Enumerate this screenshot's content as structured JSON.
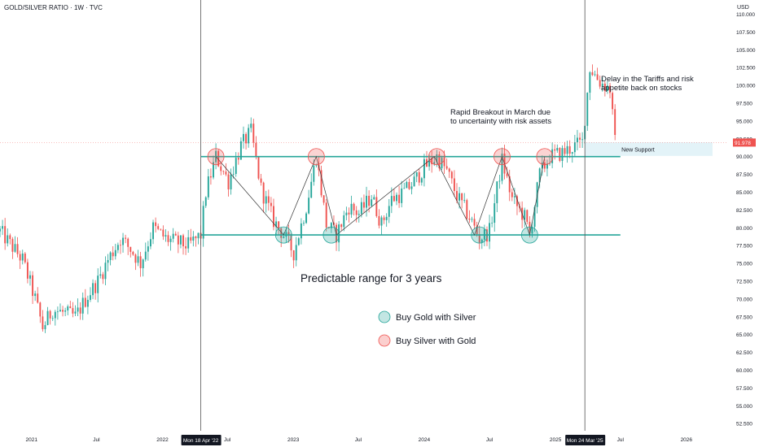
{
  "header": {
    "title": "GOLD/SILVER RATIO · 1W · TVC",
    "currency": "USD"
  },
  "chart_data": {
    "type": "candlestick",
    "instrument": "GOLD/SILVER RATIO",
    "interval": "1W",
    "source": "TVC",
    "ylim": [
      51.5,
      112.0
    ],
    "y_ticks": [
      "110.000",
      "107.500",
      "105.000",
      "102.500",
      "100.000",
      "97.500",
      "95.000",
      "92.500",
      "90.000",
      "87.500",
      "85.000",
      "82.500",
      "80.000",
      "77.500",
      "75.000",
      "72.500",
      "70.000",
      "67.500",
      "65.000",
      "62.500",
      "60.000",
      "57.500",
      "55.000",
      "52.500"
    ],
    "x_ticks": [
      {
        "label": "2021",
        "date": "2021-01-01"
      },
      {
        "label": "Jul",
        "date": "2021-07-01"
      },
      {
        "label": "2022",
        "date": "2022-01-01"
      },
      {
        "label": "Jul",
        "date": "2022-07-01"
      },
      {
        "label": "2023",
        "date": "2023-01-01"
      },
      {
        "label": "Jul",
        "date": "2023-07-01"
      },
      {
        "label": "2024",
        "date": "2024-01-01"
      },
      {
        "label": "Jul",
        "date": "2024-07-01"
      },
      {
        "label": "2025",
        "date": "2025-01-01"
      },
      {
        "label": "Jul",
        "date": "2025-07-01"
      },
      {
        "label": "2026",
        "date": "2026-01-01"
      }
    ],
    "x_start": "2020-10-05",
    "x_end": "2026-04-25",
    "last_price": "91.978",
    "last_price_value": 91.978,
    "vertical_markers": [
      {
        "label": "Mon 18 Apr '22",
        "date": "2022-04-18"
      },
      {
        "label": "Mon 24 Mar '25",
        "date": "2025-03-24"
      }
    ],
    "horizontal_levels": [
      {
        "value": 90.0,
        "from": "2022-04-18",
        "to": "2025-07-01"
      },
      {
        "value": 79.0,
        "from": "2022-04-18",
        "to": "2025-07-01"
      }
    ],
    "support_zone": {
      "low": 90.1,
      "high": 92.0,
      "from": "2025-03-24",
      "to": "2026-03-15",
      "label": "New Support"
    },
    "zigzag": [
      {
        "date": "2022-05-30",
        "value": 90.0
      },
      {
        "date": "2022-12-05",
        "value": 79.0
      },
      {
        "date": "2023-03-06",
        "value": 90.0
      },
      {
        "date": "2023-05-01",
        "value": 79.0
      },
      {
        "date": "2024-01-29",
        "value": 90.0
      },
      {
        "date": "2024-05-20",
        "value": 79.0
      },
      {
        "date": "2024-08-05",
        "value": 90.0
      },
      {
        "date": "2024-10-21",
        "value": 79.0
      },
      {
        "date": "2024-12-02",
        "value": 90.0
      }
    ],
    "buy_gold_circles": [
      {
        "date": "2022-12-05",
        "value": 79.0
      },
      {
        "date": "2023-04-17",
        "value": 79.0
      },
      {
        "date": "2024-06-03",
        "value": 79.0
      },
      {
        "date": "2024-10-21",
        "value": 79.0
      }
    ],
    "buy_silver_circles": [
      {
        "date": "2022-05-30",
        "value": 90.0
      },
      {
        "date": "2023-03-06",
        "value": 90.0
      },
      {
        "date": "2024-02-05",
        "value": 90.0
      },
      {
        "date": "2024-08-05",
        "value": 90.0
      },
      {
        "date": "2024-12-02",
        "value": 90.0
      }
    ],
    "annotations": [
      {
        "text": "Predictable range for 3 years",
        "lines": [
          "Predictable range for 3 years"
        ]
      },
      {
        "text": "Rapid Breakout in March due to uncertainty with risk assets",
        "lines": [
          "Rapid Breakout in March due",
          "to uncertainty with risk assets"
        ]
      },
      {
        "text": "Delay in the Tariffs and risk appetite back on stocks",
        "lines": [
          "Delay in the Tariffs and risk",
          "appetite back on stocks"
        ]
      }
    ],
    "legend": [
      {
        "label": "Buy Gold with Silver",
        "color": "#26a69a"
      },
      {
        "label": "Buy Silver with Gold",
        "color": "#ef5350"
      }
    ],
    "path_points": [
      {
        "date": "2020-10-05",
        "value": 79.5
      },
      {
        "date": "2020-12-07",
        "value": 75.5
      },
      {
        "date": "2021-01-11",
        "value": 70.0
      },
      {
        "date": "2021-02-01",
        "value": 66.0
      },
      {
        "date": "2021-03-01",
        "value": 68.5
      },
      {
        "date": "2021-04-05",
        "value": 68.0
      },
      {
        "date": "2021-05-03",
        "value": 67.5
      },
      {
        "date": "2021-06-07",
        "value": 70.5
      },
      {
        "date": "2021-07-05",
        "value": 72.5
      },
      {
        "date": "2021-08-02",
        "value": 75.5
      },
      {
        "date": "2021-09-06",
        "value": 78.5
      },
      {
        "date": "2021-10-04",
        "value": 77.0
      },
      {
        "date": "2021-11-01",
        "value": 75.0
      },
      {
        "date": "2021-12-06",
        "value": 80.0
      },
      {
        "date": "2022-01-10",
        "value": 78.5
      },
      {
        "date": "2022-02-07",
        "value": 78.0
      },
      {
        "date": "2022-03-14",
        "value": 77.5
      },
      {
        "date": "2022-04-18",
        "value": 79.0
      },
      {
        "date": "2022-05-02",
        "value": 85.0
      },
      {
        "date": "2022-05-30",
        "value": 90.0
      },
      {
        "date": "2022-07-04",
        "value": 86.5
      },
      {
        "date": "2022-08-08",
        "value": 91.5
      },
      {
        "date": "2022-09-05",
        "value": 93.5
      },
      {
        "date": "2022-10-03",
        "value": 85.5
      },
      {
        "date": "2022-11-07",
        "value": 81.0
      },
      {
        "date": "2022-12-05",
        "value": 79.0
      },
      {
        "date": "2023-01-02",
        "value": 76.5
      },
      {
        "date": "2023-02-06",
        "value": 83.0
      },
      {
        "date": "2023-03-06",
        "value": 90.0
      },
      {
        "date": "2023-04-03",
        "value": 80.5
      },
      {
        "date": "2023-05-01",
        "value": 79.0
      },
      {
        "date": "2023-06-05",
        "value": 83.0
      },
      {
        "date": "2023-07-03",
        "value": 82.0
      },
      {
        "date": "2023-08-07",
        "value": 84.5
      },
      {
        "date": "2023-09-04",
        "value": 80.5
      },
      {
        "date": "2023-10-02",
        "value": 84.0
      },
      {
        "date": "2023-11-06",
        "value": 85.0
      },
      {
        "date": "2023-12-04",
        "value": 86.5
      },
      {
        "date": "2024-01-01",
        "value": 88.5
      },
      {
        "date": "2024-02-05",
        "value": 90.0
      },
      {
        "date": "2024-03-04",
        "value": 88.0
      },
      {
        "date": "2024-04-01",
        "value": 84.5
      },
      {
        "date": "2024-05-06",
        "value": 81.5
      },
      {
        "date": "2024-06-03",
        "value": 78.5
      },
      {
        "date": "2024-07-01",
        "value": 79.5
      },
      {
        "date": "2024-08-05",
        "value": 89.5
      },
      {
        "date": "2024-09-02",
        "value": 84.0
      },
      {
        "date": "2024-10-07",
        "value": 81.5
      },
      {
        "date": "2024-10-21",
        "value": 79.0
      },
      {
        "date": "2024-11-18",
        "value": 87.5
      },
      {
        "date": "2024-12-16",
        "value": 90.0
      },
      {
        "date": "2025-01-20",
        "value": 90.5
      },
      {
        "date": "2025-02-24",
        "value": 91.5
      },
      {
        "date": "2025-03-17",
        "value": 92.0
      },
      {
        "date": "2025-04-07",
        "value": 102.5
      },
      {
        "date": "2025-05-05",
        "value": 100.5
      },
      {
        "date": "2025-06-02",
        "value": 99.5
      },
      {
        "date": "2025-06-16",
        "value": 92.0
      }
    ],
    "up_color": "#26a69a",
    "down_color": "#ef5350"
  }
}
